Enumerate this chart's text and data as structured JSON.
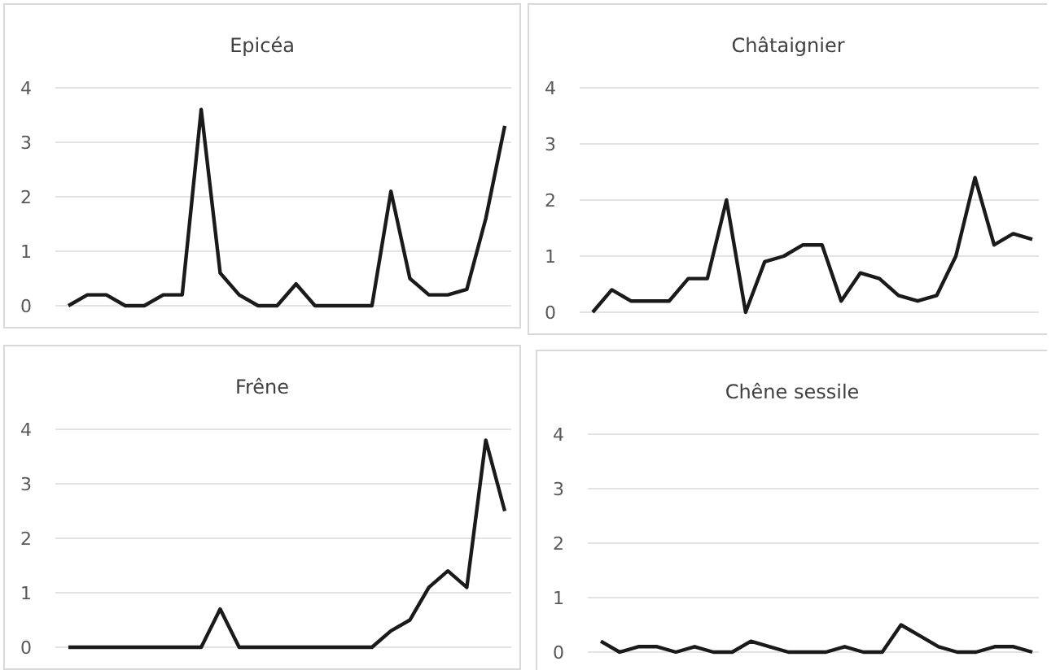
{
  "chart_data": [
    {
      "type": "line",
      "title": "Epicéa",
      "categories": [
        null,
        null,
        null,
        null,
        null,
        null,
        null,
        null,
        null,
        null,
        null,
        null,
        null,
        null,
        null,
        null,
        null,
        null,
        null,
        null,
        null,
        null,
        null,
        null
      ],
      "series": [
        {
          "color": "#1a1a1a",
          "values": [
            0,
            0.2,
            0.2,
            0,
            0,
            0.2,
            0.2,
            3.6,
            0.6,
            0.2,
            0,
            0,
            0.4,
            0,
            0,
            0,
            0,
            2.1,
            0.5,
            0.2,
            0.2,
            0.3,
            1.6,
            3.3
          ]
        }
      ],
      "ylim": [
        0,
        4
      ],
      "yticks": [
        0,
        1,
        2,
        3,
        4
      ],
      "grid": "y",
      "tick_labels": "y",
      "marker": "none",
      "line_style": "solid"
    },
    {
      "type": "line",
      "title": "Châtaignier",
      "categories": [
        null,
        null,
        null,
        null,
        null,
        null,
        null,
        null,
        null,
        null,
        null,
        null,
        null,
        null,
        null,
        null,
        null,
        null,
        null,
        null,
        null,
        null,
        null,
        null
      ],
      "series": [
        {
          "color": "#1a1a1a",
          "values": [
            0,
            0.4,
            0.2,
            0.2,
            0.2,
            0.6,
            0.6,
            2,
            0,
            0.9,
            1,
            1.2,
            1.2,
            0.2,
            0.7,
            0.6,
            0.3,
            0.2,
            0.3,
            1,
            2.4,
            1.2,
            1.4,
            1.3
          ]
        }
      ],
      "ylim": [
        0,
        4
      ],
      "yticks": [
        0,
        1,
        2,
        3,
        4
      ],
      "grid": "y",
      "tick_labels": "y",
      "marker": "none",
      "line_style": "solid"
    },
    {
      "type": "line",
      "title": "Frêne",
      "categories": [
        null,
        null,
        null,
        null,
        null,
        null,
        null,
        null,
        null,
        null,
        null,
        null,
        null,
        null,
        null,
        null,
        null,
        null,
        null,
        null,
        null,
        null,
        null,
        null
      ],
      "series": [
        {
          "color": "#1a1a1a",
          "values": [
            0,
            0,
            0,
            0,
            0,
            0,
            0,
            0,
            0.7,
            0,
            0,
            0,
            0,
            0,
            0,
            0,
            0,
            0.3,
            0.5,
            1.1,
            1.4,
            1.1,
            3.8,
            2.5
          ]
        }
      ],
      "ylim": [
        0,
        4
      ],
      "yticks": [
        0,
        1,
        2,
        3,
        4
      ],
      "grid": "y",
      "tick_labels": "y",
      "marker": "none",
      "line_style": "solid"
    },
    {
      "type": "line",
      "title": "Chêne sessile",
      "categories": [
        null,
        null,
        null,
        null,
        null,
        null,
        null,
        null,
        null,
        null,
        null,
        null,
        null,
        null,
        null,
        null,
        null,
        null,
        null,
        null,
        null,
        null,
        null,
        null
      ],
      "series": [
        {
          "color": "#1a1a1a",
          "values": [
            0.2,
            0,
            0.1,
            0.1,
            0,
            0.1,
            0,
            0,
            0.2,
            0.1,
            0,
            0,
            0,
            0.1,
            0,
            0,
            0.5,
            0.3,
            0.1,
            0,
            0,
            0.1,
            0.1,
            0
          ]
        }
      ],
      "ylim": [
        0,
        4
      ],
      "yticks": [
        0,
        1,
        2,
        3,
        4
      ],
      "grid": "y",
      "tick_labels": "y",
      "marker": "none",
      "line_style": "solid"
    }
  ]
}
